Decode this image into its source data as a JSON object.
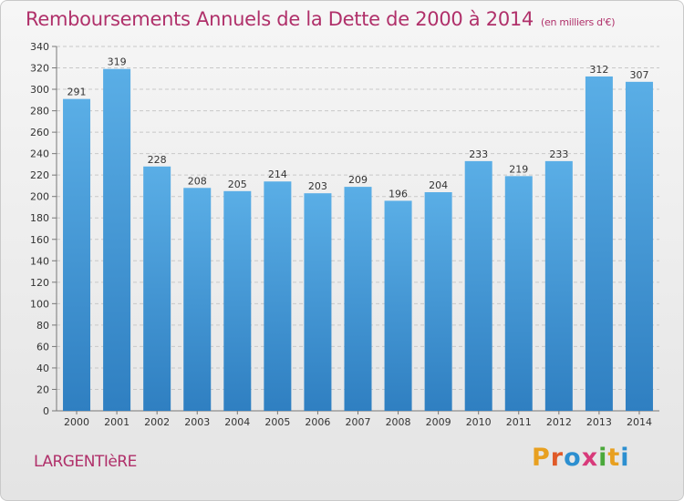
{
  "header": {
    "title": "Remboursements Annuels de la Dette de 2000 à 2014",
    "unit": "(en milliers d'€)"
  },
  "footer": {
    "city": "LARGENTIèRE",
    "brand": "Proxiti"
  },
  "colors": {
    "bar_top": "#5aaee6",
    "bar_bottom": "#2f7fc1",
    "title": "#b0306a"
  },
  "chart_data": {
    "type": "bar",
    "title": "Remboursements Annuels de la Dette de 2000 à 2014",
    "categories": [
      "2000",
      "2001",
      "2002",
      "2003",
      "2004",
      "2005",
      "2006",
      "2007",
      "2008",
      "2009",
      "2010",
      "2011",
      "2012",
      "2013",
      "2014"
    ],
    "values": [
      291,
      319,
      228,
      208,
      205,
      214,
      203,
      209,
      196,
      204,
      233,
      219,
      233,
      312,
      307
    ],
    "ylim": [
      0,
      340
    ],
    "yticks": [
      0,
      20,
      40,
      60,
      80,
      100,
      120,
      140,
      160,
      180,
      200,
      220,
      240,
      260,
      280,
      300,
      320,
      340
    ],
    "grid": true,
    "legend": "none"
  }
}
